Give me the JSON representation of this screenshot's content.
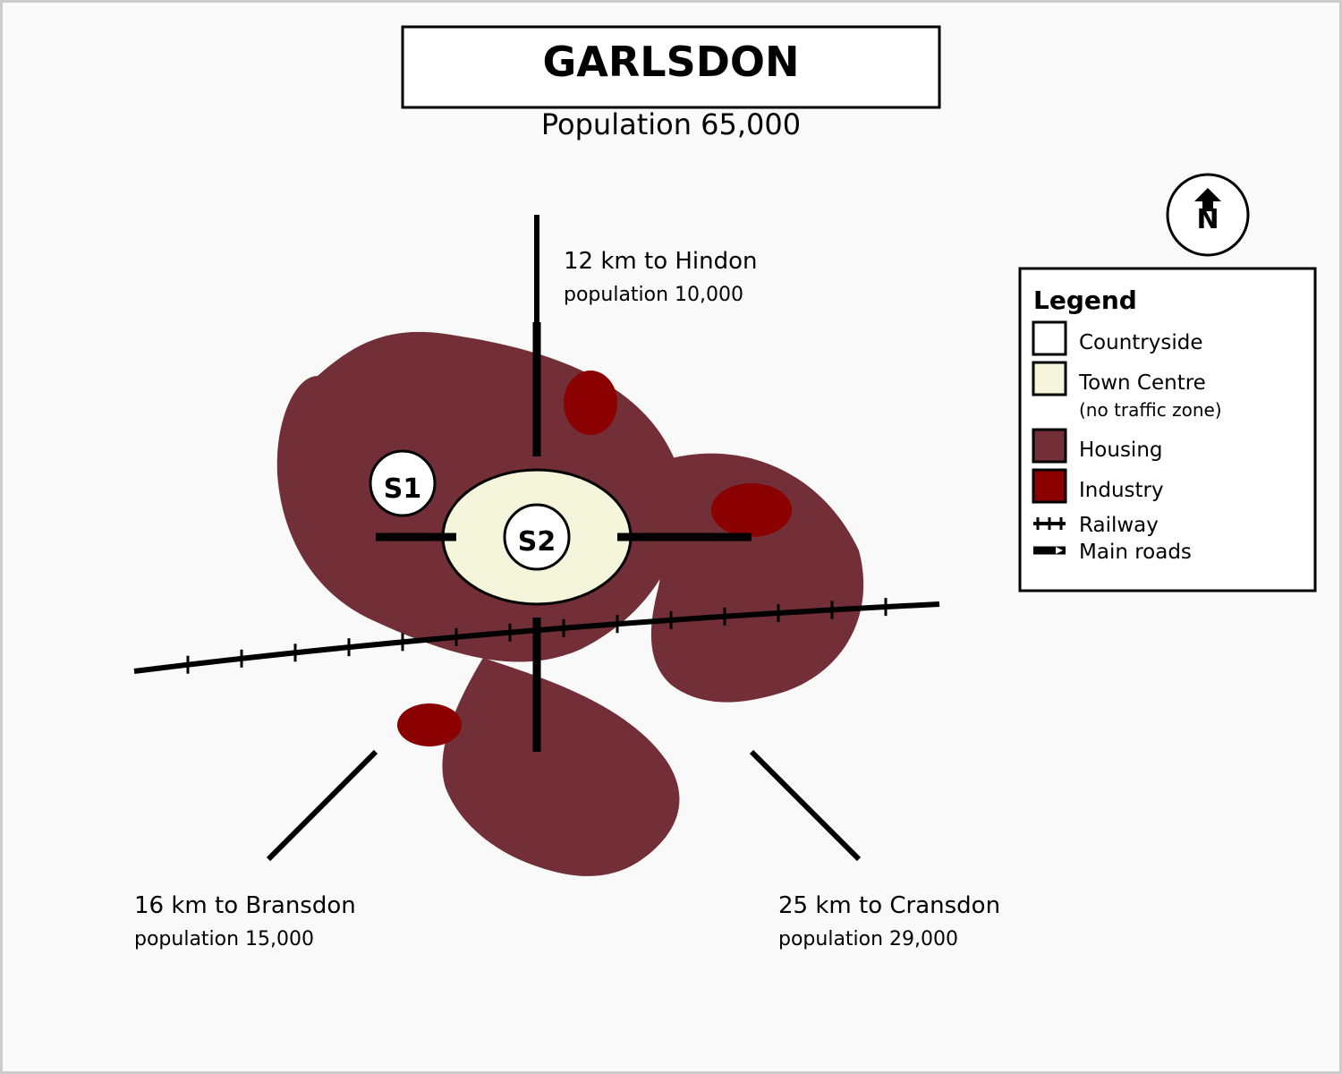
{
  "map": {
    "title": "GARLSDON",
    "subtitle": "Population 65,000",
    "compass": "N",
    "sites": [
      {
        "label": "S1"
      },
      {
        "label": "S2"
      }
    ],
    "destinations": [
      {
        "direction": "north",
        "name": "12 km to Hindon",
        "population": "population 10,000"
      },
      {
        "direction": "south-west",
        "name": "16 km to Bransdon",
        "population": "population 15,000"
      },
      {
        "direction": "south-east",
        "name": "25 km to Cransdon",
        "population": "population 29,000"
      }
    ]
  },
  "legend": {
    "title": "Legend",
    "items": [
      {
        "label": "Countryside",
        "color": "#ffffff"
      },
      {
        "label": "Town Centre",
        "note": "(no traffic zone)",
        "color": "#f5f5dc"
      },
      {
        "label": "Housing",
        "color": "#722f37"
      },
      {
        "label": "Industry",
        "color": "#8b0000"
      },
      {
        "label": "Railway",
        "symbol": "railway-line"
      },
      {
        "label": "Main roads",
        "symbol": "road-line"
      }
    ]
  },
  "colors": {
    "countryside": "#f9f9f9",
    "town_centre": "#f5f5dc",
    "housing": "#722f37",
    "industry": "#8b0000"
  }
}
